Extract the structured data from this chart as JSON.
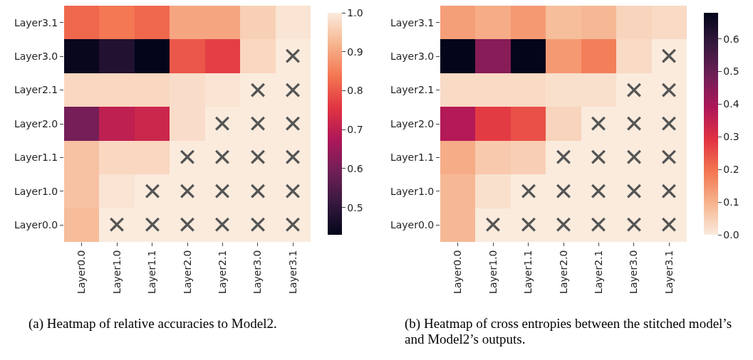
{
  "chart_data": [
    {
      "type": "heatmap",
      "categories": [
        "Layer0.0",
        "Layer1.0",
        "Layer1.1",
        "Layer2.0",
        "Layer2.1",
        "Layer3.0",
        "Layer3.1"
      ],
      "y_categories": [
        "Layer3.1",
        "Layer3.0",
        "Layer2.1",
        "Layer2.0",
        "Layer1.1",
        "Layer1.0",
        "Layer0.0"
      ],
      "cells": [
        [
          0.82,
          0.84,
          0.82,
          0.9,
          0.9,
          0.96,
          0.99
        ],
        [
          0.44,
          0.48,
          0.43,
          0.8,
          0.77,
          0.97,
          1.0
        ],
        [
          0.97,
          0.97,
          0.97,
          0.98,
          0.99,
          1.0,
          1.0
        ],
        [
          0.6,
          0.7,
          0.72,
          0.98,
          1.0,
          1.0,
          1.0
        ],
        [
          0.94,
          0.97,
          0.97,
          1.0,
          1.0,
          1.0,
          1.0
        ],
        [
          0.94,
          0.99,
          1.0,
          1.0,
          1.0,
          1.0,
          1.0
        ],
        [
          0.93,
          1.0,
          1.0,
          1.0,
          1.0,
          1.0,
          1.0
        ]
      ],
      "cell_labels": [
        [
          null,
          null,
          null,
          null,
          null,
          null,
          null
        ],
        [
          null,
          null,
          null,
          null,
          null,
          null,
          "✕"
        ],
        [
          null,
          null,
          null,
          null,
          null,
          "✕",
          "✕"
        ],
        [
          null,
          null,
          null,
          null,
          "✕",
          "✕",
          "✕"
        ],
        [
          null,
          null,
          null,
          "✕",
          "✕",
          "✕",
          "✕"
        ],
        [
          null,
          null,
          "✕",
          "✕",
          "✕",
          "✕",
          "✕"
        ],
        [
          null,
          "✕",
          "✕",
          "✕",
          "✕",
          "✕",
          "✕"
        ]
      ],
      "colors": [
        "#03051a",
        "#36193e",
        "#701f57",
        "#ae1759",
        "#e13342",
        "#f37651",
        "#f6b48e",
        "#faebdd"
      ],
      "clim": [
        0.43,
        1.0
      ],
      "cticks": [
        0.5,
        0.6,
        0.7,
        0.8,
        0.9,
        {
          "value": 1.0,
          "label": "1.0"
        }
      ],
      "annotations": [
        "(a) Heatmap of relative accuracies to Model2."
      ]
    },
    {
      "type": "heatmap",
      "categories": [
        "Layer0.0",
        "Layer1.0",
        "Layer1.1",
        "Layer2.0",
        "Layer2.1",
        "Layer3.0",
        "Layer3.1"
      ],
      "y_categories": [
        "Layer3.1",
        "Layer3.0",
        "Layer2.1",
        "Layer2.0",
        "Layer1.1",
        "Layer1.0",
        "Layer0.0"
      ],
      "cells": [
        [
          0.13,
          0.11,
          0.14,
          0.08,
          0.09,
          0.04,
          0.03
        ],
        [
          0.68,
          0.45,
          0.68,
          0.14,
          0.18,
          0.03,
          0.0
        ],
        [
          0.03,
          0.03,
          0.03,
          0.02,
          0.02,
          0.0,
          0.0
        ],
        [
          0.38,
          0.28,
          0.25,
          0.04,
          0.0,
          0.0,
          0.0
        ],
        [
          0.11,
          0.06,
          0.05,
          0.0,
          0.0,
          0.0,
          0.0
        ],
        [
          0.09,
          0.02,
          0.0,
          0.0,
          0.0,
          0.0,
          0.0
        ],
        [
          0.09,
          0.0,
          0.0,
          0.0,
          0.0,
          0.0,
          0.0
        ]
      ],
      "cell_labels": [
        [
          null,
          null,
          null,
          null,
          null,
          null,
          null
        ],
        [
          null,
          null,
          null,
          null,
          null,
          null,
          "✕"
        ],
        [
          null,
          null,
          null,
          null,
          null,
          "✕",
          "✕"
        ],
        [
          null,
          null,
          null,
          null,
          "✕",
          "✕",
          "✕"
        ],
        [
          null,
          null,
          null,
          "✕",
          "✕",
          "✕",
          "✕"
        ],
        [
          null,
          null,
          "✕",
          "✕",
          "✕",
          "✕",
          "✕"
        ],
        [
          null,
          "✕",
          "✕",
          "✕",
          "✕",
          "✕",
          "✕"
        ]
      ],
      "colors": [
        "#faebdd",
        "#f6b48e",
        "#f37651",
        "#e13342",
        "#ae1759",
        "#701f57",
        "#36193e",
        "#03051a"
      ],
      "clim": [
        0.0,
        0.68
      ],
      "cticks": [
        {
          "value": 0.0,
          "label": "0.0"
        },
        0.1,
        0.2,
        0.3,
        0.4,
        0.5,
        0.6
      ],
      "annotations": [
        "(b) Heatmap of cross entropies between the stitched model’s and Model2’s outputs."
      ]
    }
  ]
}
